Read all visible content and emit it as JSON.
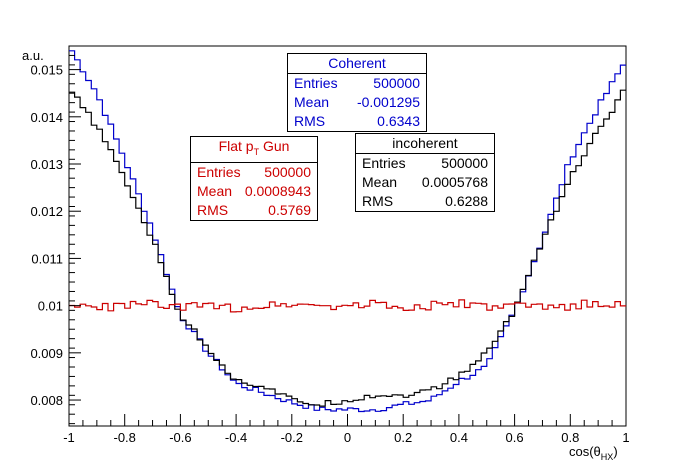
{
  "chart_data": {
    "type": "line",
    "xlabel": "cos(θ_HX)",
    "ylabel": "a.u.",
    "xlim": [
      -1,
      1
    ],
    "ylim": [
      0.00745,
      0.0155
    ],
    "x_ticks": [
      -1,
      -0.8,
      -0.6,
      -0.4,
      -0.2,
      0,
      0.2,
      0.4,
      0.6,
      0.8,
      1
    ],
    "x_tick_labels": [
      "-1",
      "-0.8",
      "-0.6",
      "-0.4",
      "-0.2",
      "0",
      "0.2",
      "0.4",
      "0.6",
      "0.8",
      "1"
    ],
    "y_ticks": [
      0.008,
      0.009,
      0.01,
      0.011,
      0.012,
      0.013,
      0.014,
      0.015
    ],
    "y_tick_labels": [
      "0.008",
      "0.009",
      "0.01",
      "0.011",
      "0.012",
      "0.013",
      "0.014",
      "0.015"
    ],
    "grid": false,
    "series": [
      {
        "name": "Coherent",
        "color": "#0000cc",
        "x": [
          -1.0,
          -0.9,
          -0.8,
          -0.7,
          -0.6,
          -0.5,
          -0.4,
          -0.3,
          -0.2,
          -0.1,
          0.0,
          0.1,
          0.2,
          0.3,
          0.4,
          0.5,
          0.6,
          0.7,
          0.8,
          0.9,
          1.0
        ],
        "y": [
          0.0155,
          0.0145,
          0.0131,
          0.0116,
          0.0098,
          0.009,
          0.00835,
          0.00815,
          0.00795,
          0.0078,
          0.0078,
          0.0078,
          0.0079,
          0.008,
          0.0084,
          0.0087,
          0.0099,
          0.0114,
          0.0131,
          0.0142,
          0.0152
        ]
      },
      {
        "name": "incoherent",
        "color": "#000000",
        "x": [
          -1.0,
          -0.9,
          -0.8,
          -0.7,
          -0.6,
          -0.5,
          -0.4,
          -0.3,
          -0.2,
          -0.1,
          0.0,
          0.1,
          0.2,
          0.3,
          0.4,
          0.5,
          0.6,
          0.7,
          0.8,
          0.9,
          1.0
        ],
        "y": [
          0.0146,
          0.0138,
          0.0127,
          0.0114,
          0.0098,
          0.0091,
          0.0084,
          0.0083,
          0.008,
          0.0079,
          0.008,
          0.0081,
          0.0081,
          0.0082,
          0.0085,
          0.009,
          0.0099,
          0.0114,
          0.0127,
          0.0137,
          0.0146
        ]
      },
      {
        "name": "Flat pT Gun",
        "color": "#cc0000",
        "x": [
          -1.0,
          -0.9,
          -0.8,
          -0.7,
          -0.6,
          -0.5,
          -0.4,
          -0.3,
          -0.2,
          -0.1,
          0.0,
          0.1,
          0.2,
          0.3,
          0.4,
          0.5,
          0.6,
          0.7,
          0.8,
          0.9,
          1.0
        ],
        "y": [
          0.01,
          0.00995,
          0.01,
          0.01005,
          0.00995,
          0.01,
          0.00995,
          0.01,
          0.01005,
          0.01,
          0.01,
          0.01005,
          0.00995,
          0.01,
          0.01005,
          0.00995,
          0.01,
          0.00995,
          0.01,
          0.01005,
          0.01
        ]
      }
    ],
    "stats": [
      {
        "title": "Coherent",
        "color": "#0000cc",
        "entries_label": "Entries",
        "entries": "500000",
        "mean_label": "Mean",
        "mean": "-0.001295",
        "rms_label": "RMS",
        "rms": "0.6343"
      },
      {
        "title_main": "Flat p",
        "title_sub": "T",
        "title_rest": " Gun",
        "color": "#cc0000",
        "entries_label": "Entries",
        "entries": "500000",
        "mean_label": "Mean",
        "mean": "0.0008943",
        "rms_label": "RMS",
        "rms": "0.5769"
      },
      {
        "title": "incoherent",
        "color": "#000000",
        "entries_label": "Entries",
        "entries": "500000",
        "mean_label": "Mean",
        "mean": "0.0005768",
        "rms_label": "RMS",
        "rms": "0.6288"
      }
    ]
  }
}
